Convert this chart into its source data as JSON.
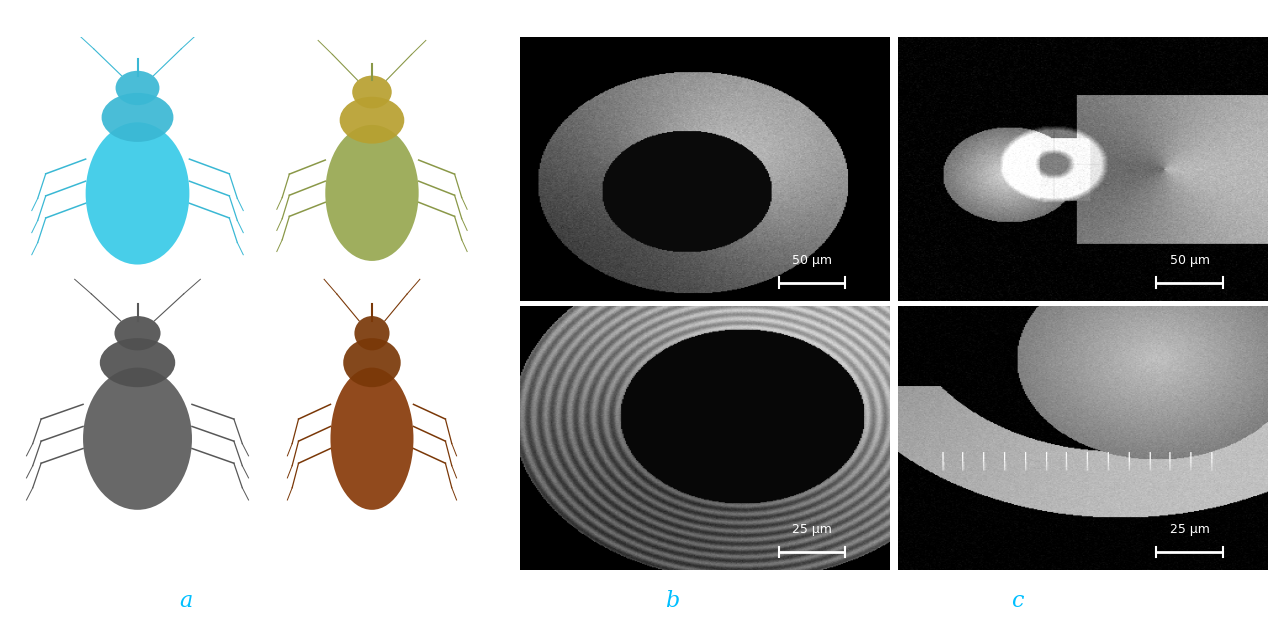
{
  "title": "",
  "label_a": "a",
  "label_b": "b",
  "label_c": "c",
  "label_color": "#00BFFF",
  "label_fontsize": 16,
  "background_color": "#ffffff",
  "panel_a_bg": "#ffffff",
  "panel_b_bg": "#000000",
  "panel_c_bg": "#000000",
  "scale_bar_top": "50 μm",
  "scale_bar_bottom": "25 μm",
  "fig_width": 12.8,
  "fig_height": 6.2
}
